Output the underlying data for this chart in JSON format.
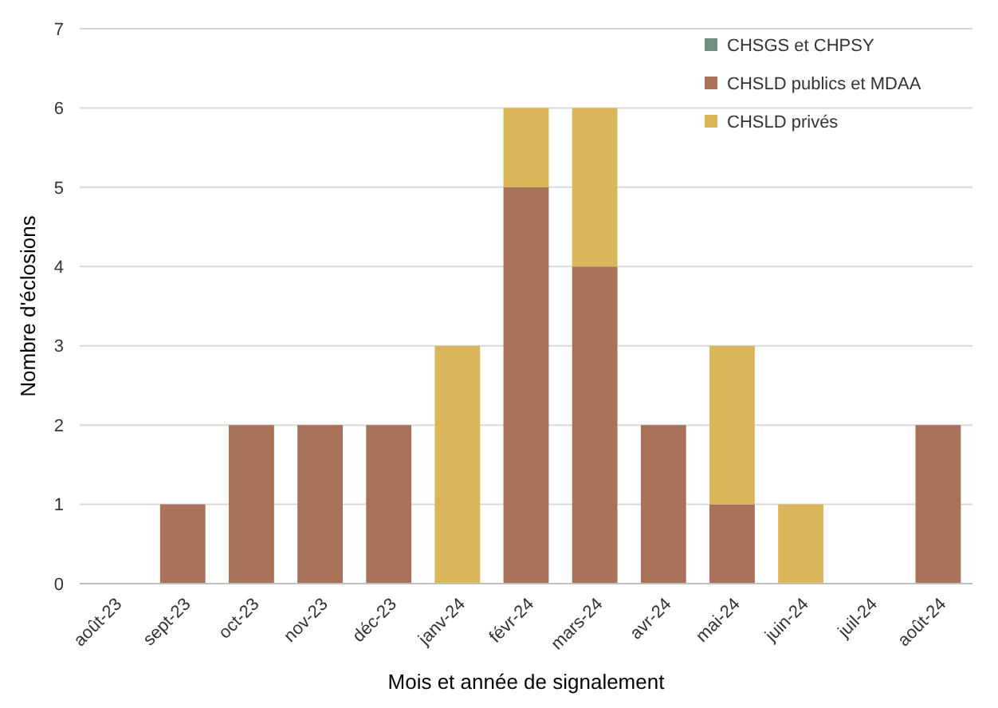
{
  "chart_data": {
    "type": "bar",
    "stacked": true,
    "xlabel": "Mois et année de signalement",
    "ylabel": "Nombre d'éclosions",
    "categories": [
      "août-23",
      "sept-23",
      "oct-23",
      "nov-23",
      "déc-23",
      "janv-24",
      "févr-24",
      "mars-24",
      "avr-24",
      "mai-24",
      "juin-24",
      "juil-24",
      "août-24"
    ],
    "series": [
      {
        "name": "CHSGS et CHPSY",
        "color": "#6e9080",
        "values": [
          0,
          0,
          0,
          0,
          0,
          0,
          0,
          0,
          0,
          0,
          0,
          0,
          0
        ]
      },
      {
        "name": "CHSLD publics et MDAA",
        "color": "#a9735a",
        "values": [
          0,
          1,
          2,
          2,
          2,
          0,
          5,
          4,
          2,
          1,
          0,
          0,
          2
        ]
      },
      {
        "name": "CHSLD privés",
        "color": "#d9b65a",
        "values": [
          0,
          0,
          0,
          0,
          0,
          3,
          1,
          2,
          0,
          2,
          1,
          0,
          0
        ]
      }
    ],
    "ylim": [
      0,
      7
    ],
    "yticks": [
      0,
      1,
      2,
      3,
      4,
      5,
      6,
      7
    ],
    "grid": "y",
    "legend": "top right"
  }
}
